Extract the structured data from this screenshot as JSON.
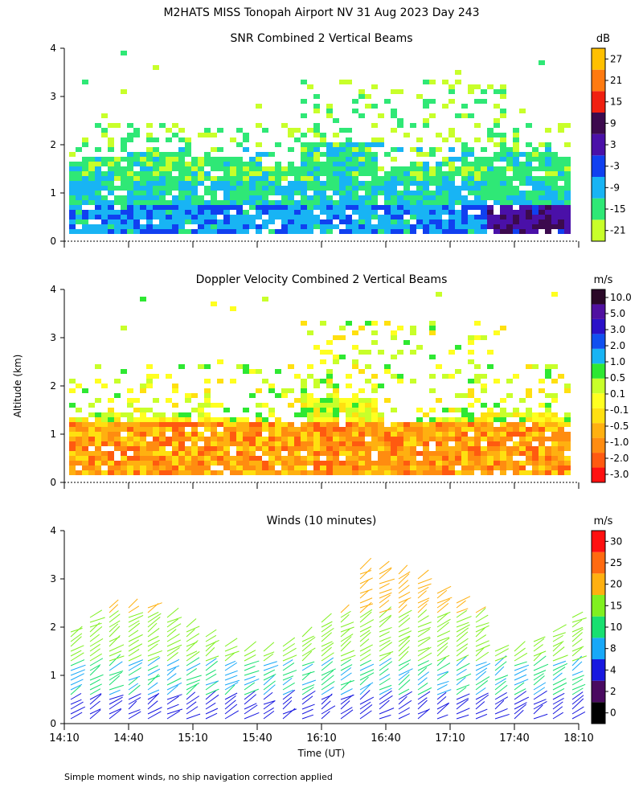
{
  "figure": {
    "title": "M2HATS MISS Tonopah Airport NV  31 Aug 2023 Day 243",
    "footnote": "Simple moment winds, no ship navigation correction applied",
    "ylabel": "Altitude (km)",
    "xlabel": "Time (UT)"
  },
  "chart_data": [
    {
      "type": "heatmap",
      "title": "SNR Combined 2 Vertical Beams",
      "ylim": [
        0,
        4
      ],
      "yticks": [
        "0",
        "1",
        "2",
        "3",
        "4"
      ],
      "x_range": [
        "14:10",
        "18:10"
      ],
      "colorbar": {
        "unit": "dB",
        "labels": [
          "-21",
          "-15",
          "-9",
          "-3",
          "3",
          "9",
          "15",
          "21",
          "27"
        ],
        "colors": [
          "#c8ff2a",
          "#2fe876",
          "#18b4f4",
          "#1040f0",
          "#4a10a8",
          "#3c0a4e",
          "#f02010",
          "#ff7a10",
          "#ffc000"
        ]
      }
    },
    {
      "type": "heatmap",
      "title": "Doppler Velocity Combined 2 Vertical Beams",
      "ylim": [
        0,
        4
      ],
      "yticks": [
        "0",
        "1",
        "2",
        "3",
        "4"
      ],
      "x_range": [
        "14:10",
        "18:10"
      ],
      "colorbar": {
        "unit": "m/s",
        "labels": [
          "-3.0",
          "-2.0",
          "-1.0",
          "-0.5",
          "-0.1",
          "0.1",
          "0.5",
          "1.0",
          "2.0",
          "3.0",
          "5.0",
          "10.0"
        ],
        "colors": [
          "#ff1010",
          "#ff5a10",
          "#ff8c10",
          "#ffb010",
          "#ffe010",
          "#ffff20",
          "#c8ff2a",
          "#2ee832",
          "#18b4f4",
          "#1050f0",
          "#2a10c8",
          "#5010a0",
          "#2a0828"
        ]
      }
    },
    {
      "type": "scatter",
      "title": "Winds (10 minutes)",
      "ylim": [
        0,
        4
      ],
      "yticks": [
        "0",
        "1",
        "2",
        "3",
        "4"
      ],
      "xticks": [
        "14:10",
        "14:40",
        "15:10",
        "15:40",
        "16:10",
        "16:40",
        "17:10",
        "17:40",
        "18:10"
      ],
      "colorbar": {
        "unit": "m/s",
        "labels": [
          "0",
          "2",
          "4",
          "8",
          "10",
          "15",
          "20",
          "25",
          "30"
        ],
        "colors": [
          "#000000",
          "#4a0a60",
          "#1818e0",
          "#18a8f8",
          "#18e070",
          "#80f020",
          "#ffb010",
          "#ff6a10",
          "#ff1010"
        ]
      }
    }
  ]
}
